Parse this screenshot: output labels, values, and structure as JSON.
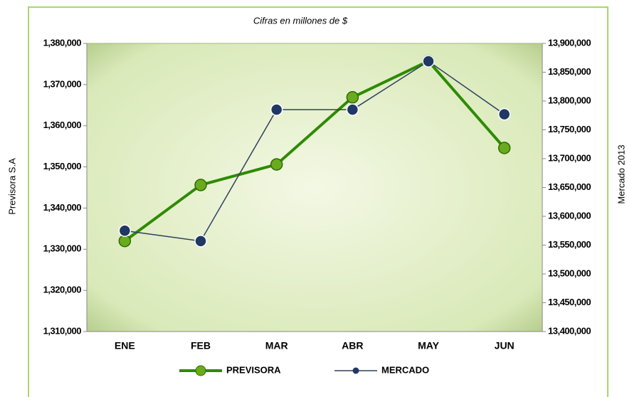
{
  "chart_data": {
    "type": "line",
    "title": "Cifras en millones de $",
    "y_label": "Previsora S.A",
    "y2_label": "Mercado 2013",
    "categories": [
      "ENE",
      "FEB",
      "MAR",
      "ABR",
      "MAY",
      "JUN"
    ],
    "series": [
      {
        "name": "PREVISORA",
        "color": "#2e8b00",
        "values": [
          1332000,
          1345600,
          1350600,
          1366900,
          1375700,
          1354600
        ]
      },
      {
        "name": "MERCADO",
        "color": "#1f3864",
        "axis": "y2",
        "values": [
          13575000,
          13557000,
          13785000,
          13785000,
          13869000,
          13777000
        ]
      }
    ],
    "ylim": [
      1310000,
      1380000
    ],
    "yticks": [
      {
        "value": 1310000,
        "label": "1,310,000"
      },
      {
        "value": 1320000,
        "label": "1,320,000"
      },
      {
        "value": 1330000,
        "label": "1,330,000"
      },
      {
        "value": 1340000,
        "label": "1,340,000"
      },
      {
        "value": 1350000,
        "label": "1,350,000"
      },
      {
        "value": 1360000,
        "label": "1,360,000"
      },
      {
        "value": 1370000,
        "label": "1,370,000"
      },
      {
        "value": 1380000,
        "label": "1,380,000"
      }
    ],
    "y2lim": [
      13400000,
      13900000
    ],
    "y2ticks": [
      {
        "value": 13400000,
        "label": "13,400,000"
      },
      {
        "value": 13450000,
        "label": "13,450,000"
      },
      {
        "value": 13500000,
        "label": "13,500,000"
      },
      {
        "value": 13550000,
        "label": "13,550,000"
      },
      {
        "value": 13600000,
        "label": "13,600,000"
      },
      {
        "value": 13650000,
        "label": "13,650,000"
      },
      {
        "value": 13700000,
        "label": "13,700,000"
      },
      {
        "value": 13750000,
        "label": "13,750,000"
      },
      {
        "value": 13800000,
        "label": "13,800,000"
      },
      {
        "value": 13850000,
        "label": "13,850,000"
      },
      {
        "value": 13900000,
        "label": "13,900,000"
      }
    ],
    "legend": "bottom"
  }
}
